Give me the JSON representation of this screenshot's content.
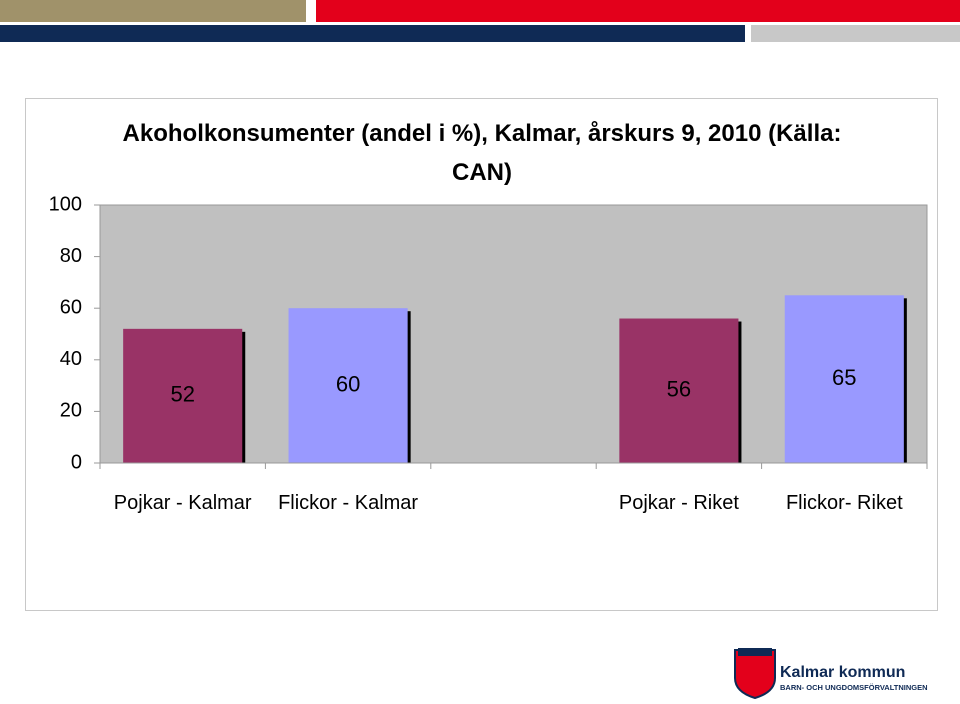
{
  "chart_data": {
    "type": "bar",
    "title": "Akoholkonsumenter (andel i %), Kalmar, årskurs 9, 2010 (Källa: CAN)",
    "categories": [
      "Pojkar - Kalmar",
      "Flickor - Kalmar",
      null,
      "Pojkar - Riket",
      "Flickor- Riket"
    ],
    "values": [
      52,
      60,
      null,
      56,
      65
    ],
    "colors": [
      "#993366",
      "#9999ff",
      null,
      "#993366",
      "#9999ff"
    ],
    "ylim": [
      0,
      100
    ],
    "yticks": [
      0,
      20,
      40,
      60,
      80,
      100
    ],
    "grid": false
  },
  "logo": {
    "name": "Kalmar kommun",
    "department": "BARN- OCH UNGDOMSFÖRVALTNINGEN"
  }
}
